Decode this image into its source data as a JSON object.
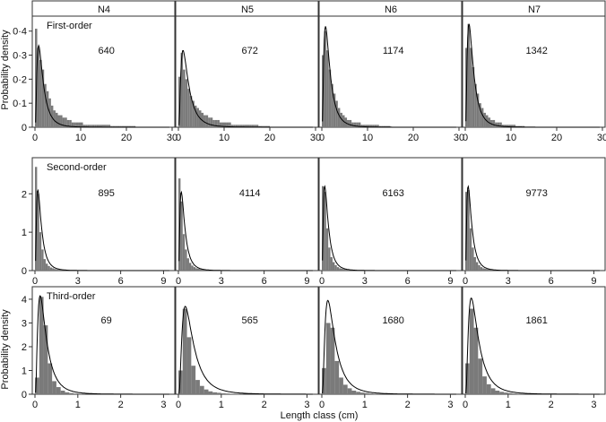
{
  "figure": {
    "y_axis_label": "Probability density",
    "x_axis_label": "Length class (cm)",
    "columns": [
      "N4",
      "N5",
      "N6",
      "N7"
    ]
  },
  "colors": {
    "bar": "#7a7a7a",
    "curve": "#000000",
    "frame": "#333333",
    "background": "#ffffff"
  },
  "chart_data": [
    {
      "row": "First-order",
      "type": "bar",
      "xlim": [
        0,
        30
      ],
      "ylim": [
        0,
        0.44
      ],
      "x_ticks": [
        0,
        10,
        20,
        30
      ],
      "y_ticks": [
        0,
        0.1,
        0.2,
        0.3,
        0.4
      ],
      "y_tick_labels": [
        "0",
        "0·1",
        "0·2",
        "0·3",
        "0·4"
      ],
      "bin_width": 0.5,
      "panels": [
        {
          "column": "N4",
          "n_label": "640",
          "fit_peak": 0.34,
          "fit_mode": 0.8,
          "values": [
            0.41,
            0.33,
            0.28,
            0.24,
            0.18,
            0.15,
            0.12,
            0.09,
            0.07,
            0.06,
            0.05,
            0.05,
            0.04,
            0.04,
            0.03,
            0.03,
            0.02,
            0.02,
            0.02,
            0.02,
            0.02,
            0.01,
            0.01,
            0.01,
            0.01,
            0.01,
            0.01,
            0.01,
            0.01,
            0.01,
            0.01,
            0.01,
            0.01,
            0.005,
            0.005,
            0.005,
            0.005,
            0.005,
            0.005,
            0.005,
            0.005,
            0.005,
            0.005,
            0.005
          ]
        },
        {
          "column": "N5",
          "n_label": "672",
          "fit_peak": 0.32,
          "fit_mode": 1.0,
          "values": [
            0.21,
            0.31,
            0.24,
            0.2,
            0.16,
            0.13,
            0.11,
            0.09,
            0.08,
            0.07,
            0.06,
            0.05,
            0.05,
            0.04,
            0.04,
            0.03,
            0.03,
            0.03,
            0.02,
            0.02,
            0.02,
            0.02,
            0.02,
            0.01,
            0.01,
            0.01,
            0.01,
            0.01,
            0.01,
            0.01,
            0.01,
            0.01,
            0.01,
            0.01,
            0.01,
            0.005,
            0.005,
            0.005,
            0.005,
            0.005
          ]
        },
        {
          "column": "N6",
          "n_label": "1174",
          "fit_peak": 0.42,
          "fit_mode": 0.8,
          "values": [
            0.3,
            0.4,
            0.32,
            0.24,
            0.18,
            0.14,
            0.11,
            0.08,
            0.06,
            0.05,
            0.04,
            0.03,
            0.03,
            0.02,
            0.02,
            0.02,
            0.02,
            0.01,
            0.01,
            0.01,
            0.01,
            0.01,
            0.01,
            0.01,
            0.01,
            0.005,
            0.005,
            0.005,
            0.005,
            0.005
          ]
        },
        {
          "column": "N7",
          "n_label": "1342",
          "fit_peak": 0.43,
          "fit_mode": 0.8,
          "values": [
            0.33,
            0.43,
            0.33,
            0.25,
            0.18,
            0.14,
            0.1,
            0.08,
            0.06,
            0.05,
            0.04,
            0.03,
            0.03,
            0.02,
            0.02,
            0.02,
            0.01,
            0.01,
            0.01,
            0.01,
            0.01,
            0.01,
            0.005,
            0.005,
            0.005,
            0.005
          ]
        }
      ]
    },
    {
      "row": "Second-order",
      "type": "bar",
      "xlim": [
        0,
        9.6
      ],
      "ylim": [
        0,
        2.8
      ],
      "x_ticks": [
        0,
        3,
        6,
        9
      ],
      "y_ticks": [
        0,
        1,
        2
      ],
      "y_tick_labels": [
        "0",
        "1",
        "2"
      ],
      "bin_width": 0.15,
      "panels": [
        {
          "column": "N4",
          "n_label": "895",
          "fit_peak": 2.1,
          "fit_mode": 0.2,
          "values": [
            2.7,
            2.0,
            1.0,
            0.55,
            0.3,
            0.18,
            0.12,
            0.08,
            0.06,
            0.04,
            0.03,
            0.03,
            0.02,
            0.02,
            0.01,
            0.01,
            0.01,
            0.01,
            0.01,
            0.01
          ]
        },
        {
          "column": "N5",
          "n_label": "4114",
          "fit_peak": 2.05,
          "fit_mode": 0.2,
          "values": [
            2.4,
            1.8,
            0.95,
            0.55,
            0.32,
            0.2,
            0.13,
            0.09,
            0.06,
            0.05,
            0.04,
            0.03,
            0.02,
            0.02,
            0.02,
            0.01,
            0.01,
            0.01,
            0.01,
            0.01
          ]
        },
        {
          "column": "N6",
          "n_label": "6163",
          "fit_peak": 2.2,
          "fit_mode": 0.2,
          "values": [
            2.2,
            2.05,
            1.1,
            0.6,
            0.35,
            0.22,
            0.14,
            0.09,
            0.06,
            0.05,
            0.04,
            0.03,
            0.02,
            0.02,
            0.02,
            0.01,
            0.01,
            0.01,
            0.01,
            0.01
          ]
        },
        {
          "column": "N7",
          "n_label": "9773",
          "fit_peak": 2.2,
          "fit_mode": 0.2,
          "values": [
            2.05,
            2.1,
            1.1,
            0.6,
            0.35,
            0.22,
            0.14,
            0.09,
            0.06,
            0.05,
            0.04,
            0.03,
            0.02,
            0.02,
            0.02,
            0.01,
            0.01,
            0.01,
            0.01,
            0.01
          ]
        }
      ]
    },
    {
      "row": "Third-order",
      "type": "bar",
      "xlim": [
        0,
        3.2
      ],
      "ylim": [
        0,
        4.3
      ],
      "x_ticks": [
        0,
        1,
        2,
        3
      ],
      "y_ticks": [
        0,
        1,
        2,
        3,
        4
      ],
      "y_tick_labels": [
        "0",
        "1",
        "2",
        "3",
        "4"
      ],
      "bin_width": 0.1,
      "panels": [
        {
          "column": "N4",
          "n_label": "69",
          "fit_peak": 4.15,
          "fit_mode": 0.12,
          "values": [
            0.7,
            4.1,
            2.9,
            1.3,
            0.55,
            0.3,
            0.15,
            0.08,
            0.05,
            0.03,
            0.02,
            0.01
          ]
        },
        {
          "column": "N5",
          "n_label": "565",
          "fit_peak": 3.7,
          "fit_mode": 0.16,
          "values": [
            1.0,
            3.6,
            2.4,
            1.2,
            0.6,
            0.35,
            0.2,
            0.12,
            0.08,
            0.06,
            0.04,
            0.03,
            0.02,
            0.02,
            0.01
          ]
        },
        {
          "column": "N6",
          "n_label": "1680",
          "fit_peak": 3.95,
          "fit_mode": 0.14,
          "values": [
            1.1,
            3.0,
            2.8,
            1.4,
            0.7,
            0.4,
            0.25,
            0.15,
            0.1,
            0.07,
            0.05,
            0.03,
            0.02,
            0.02,
            0.01
          ]
        },
        {
          "column": "N7",
          "n_label": "1861",
          "fit_peak": 4.05,
          "fit_mode": 0.14,
          "values": [
            1.3,
            3.6,
            2.8,
            1.5,
            0.75,
            0.42,
            0.25,
            0.15,
            0.1,
            0.07,
            0.05,
            0.03,
            0.02,
            0.02,
            0.01
          ]
        }
      ]
    }
  ]
}
